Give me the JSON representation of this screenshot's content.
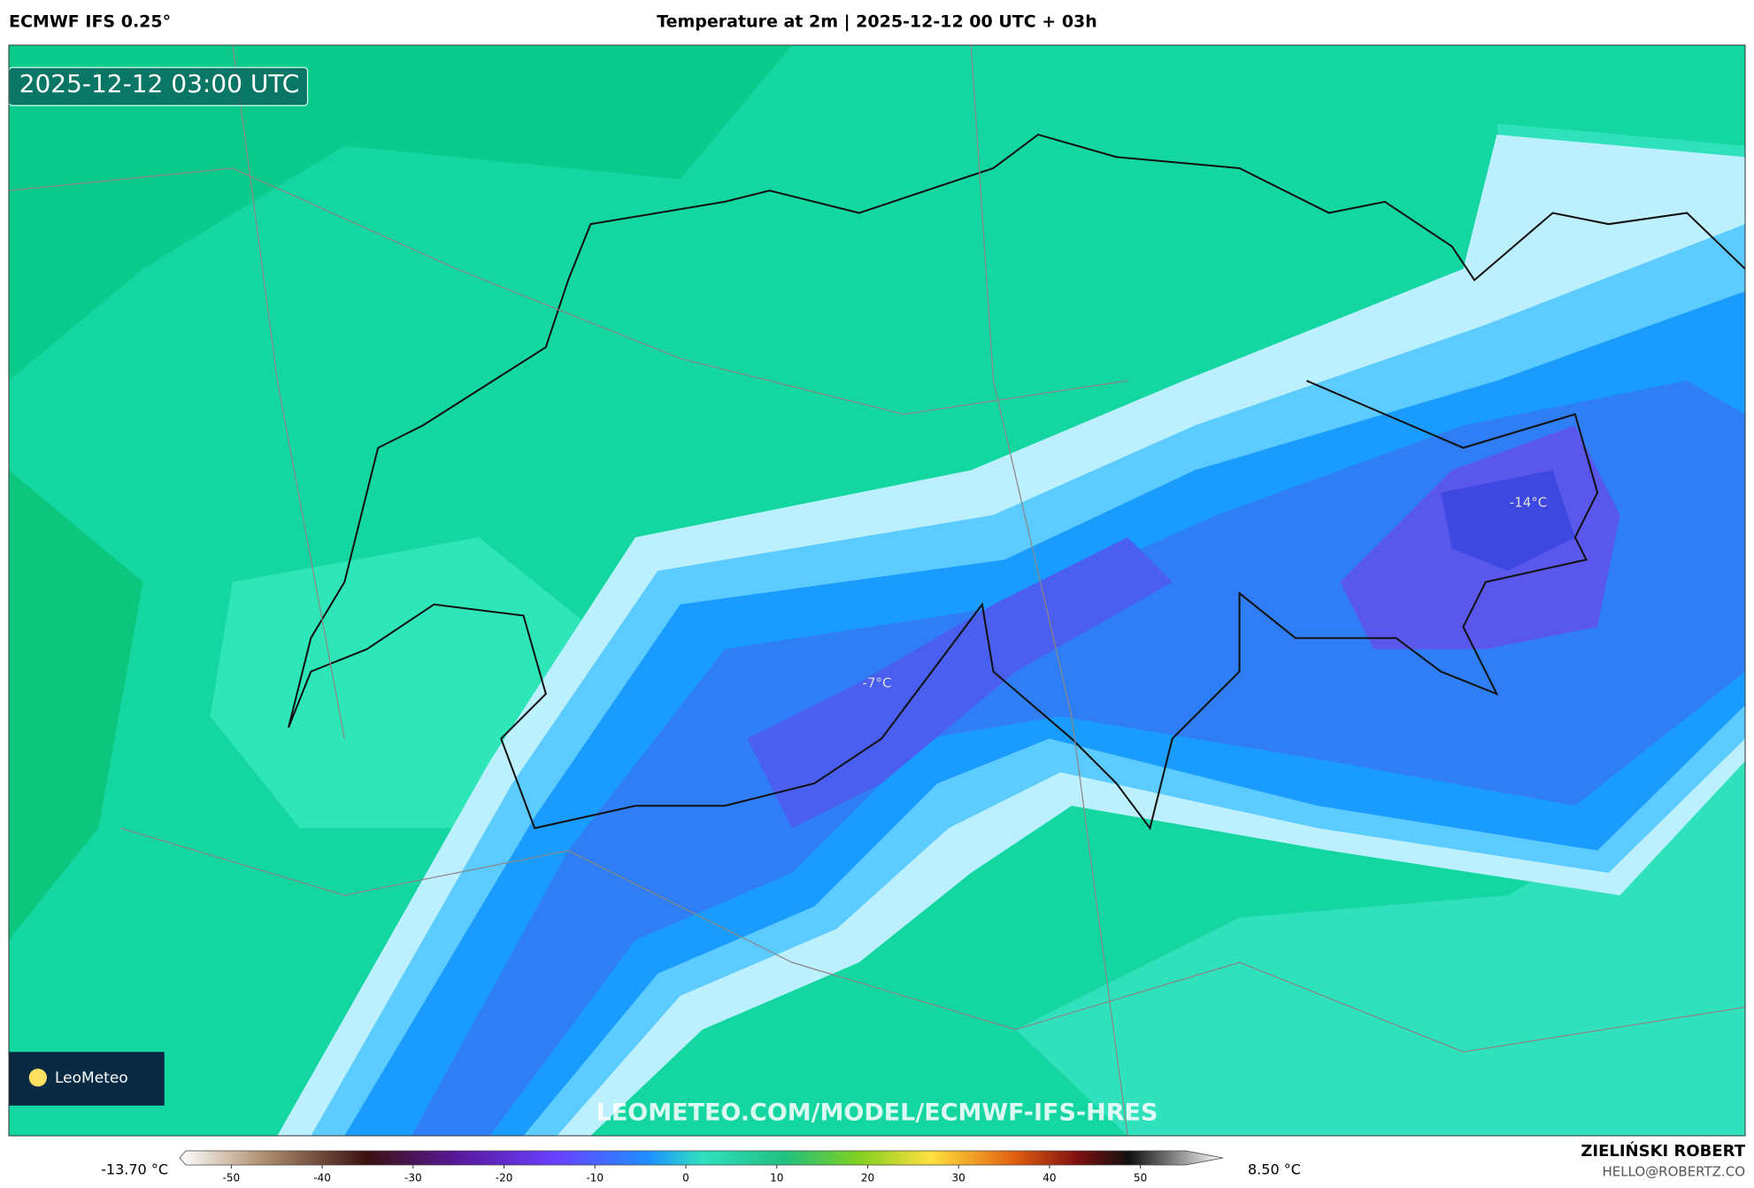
{
  "header": {
    "model": "ECMWF IFS 0.25°",
    "title": "Temperature at 2m | 2025-12-12 00 UTC + 03h"
  },
  "map": {
    "valid_time": "2025-12-12 03:00 UTC",
    "contour_labels": [
      "-7°C",
      "-14°C"
    ],
    "watermark": "LEOMETEO.COM/MODEL/ECMWF-IFS-HRES",
    "logo": "LeoMeteo"
  },
  "colorbar": {
    "min_label": "-13.70 °C",
    "max_label": "8.50 °C",
    "xlim": [
      -55,
      55
    ],
    "xticks": [
      -50,
      -40,
      -30,
      -20,
      -10,
      0,
      10,
      20,
      30,
      40,
      50
    ]
  },
  "footer": {
    "author": "ZIELIŃSKI ROBERT",
    "contact": "HELLO@ROBERTZ.CO"
  }
}
